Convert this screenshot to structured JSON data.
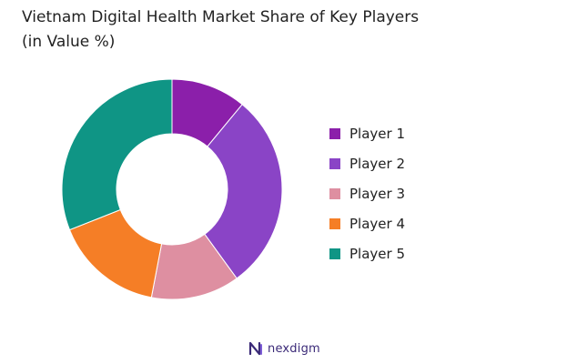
{
  "chart_data": {
    "type": "pie",
    "title": "Vietnam Digital Health Market Share of Key Players",
    "subtitle": "(in Value %)",
    "categories": [
      "Player 1",
      "Player 2",
      "Player 3",
      "Player 4",
      "Player 5"
    ],
    "values": [
      11,
      29,
      13,
      16,
      31
    ],
    "colors": [
      "#8b1faa",
      "#8a44c6",
      "#de8fa1",
      "#f57e26",
      "#0f9585"
    ],
    "legend": "right",
    "donut": true
  },
  "brand": {
    "name": "nexdigm",
    "icon": "nexdigm-logo"
  }
}
